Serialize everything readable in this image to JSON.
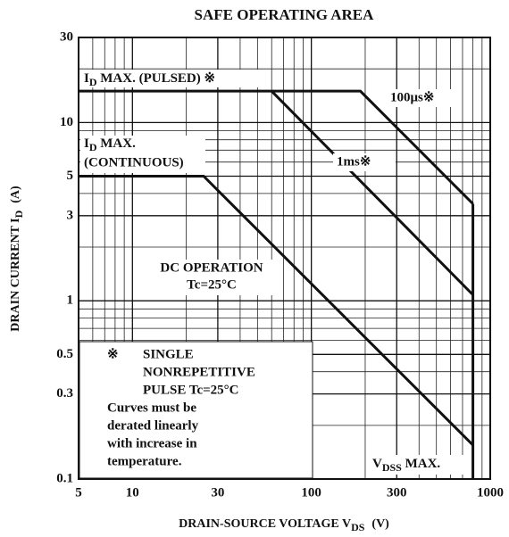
{
  "chart_data": {
    "type": "line",
    "title": "SAFE OPERATING AREA",
    "xlabel": {
      "text": "DRAIN-SOURCE VOLTAGE  V",
      "sub": "DS",
      "unit": "(V)"
    },
    "ylabel": {
      "text": "DRAIN CURRENT  I",
      "sub": "D",
      "unit": "(A)"
    },
    "log_x": true,
    "log_y": true,
    "xlim": [
      5,
      1000
    ],
    "ylim": [
      0.1,
      30
    ],
    "xticks": [
      5,
      10,
      30,
      100,
      300,
      1000
    ],
    "yticks": [
      0.1,
      0.3,
      0.5,
      1,
      3,
      5,
      10,
      30
    ],
    "xminor": [
      6,
      7,
      8,
      9,
      20,
      40,
      50,
      60,
      70,
      80,
      90,
      200,
      400,
      500,
      600,
      700,
      800,
      900
    ],
    "yminor": [
      0.2,
      0.4,
      0.6,
      0.7,
      0.8,
      0.9,
      2,
      4,
      6,
      7,
      8,
      9,
      20
    ],
    "color": "#111111",
    "series": [
      {
        "name": "100μs※",
        "x": [
          5,
          188,
          800
        ],
        "values": [
          15,
          15,
          3.5
        ]
      },
      {
        "name": "1ms※",
        "x": [
          60,
          800
        ],
        "values": [
          15,
          1.08
        ]
      },
      {
        "name": "DC OPERATION",
        "x": [
          5,
          25,
          800
        ],
        "values": [
          5,
          5,
          0.155
        ]
      },
      {
        "x": [
          800,
          800
        ],
        "values": [
          3.5,
          0.1
        ]
      }
    ],
    "annotations": {
      "pulsed": {
        "text": "I",
        "sub": "D",
        "rest": " MAX. (PULSED) ※"
      },
      "continuous": {
        "text": "I",
        "sub": "D",
        "rest": " MAX.",
        "line2": "(CONTINUOUS)"
      },
      "dc_temp": "Tc=25°C",
      "vdss": {
        "text": "V",
        "sub": "DSS",
        "rest": " MAX."
      },
      "note": {
        "mark": "※",
        "lines": [
          "SINGLE",
          "NONREPETITIVE",
          "PULSE Tc=25°C"
        ],
        "caveat": [
          "Curves must be",
          "derated linearly",
          "with increase in",
          "temperature."
        ]
      }
    }
  }
}
